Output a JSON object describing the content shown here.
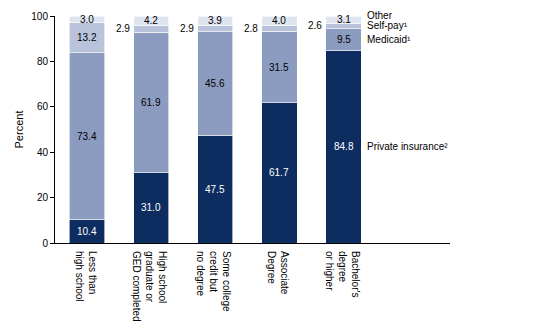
{
  "chart_data": {
    "type": "bar",
    "stacked": true,
    "data_labels": true,
    "grid": false,
    "y_label": "Percent",
    "categories": [
      "Less than\nhigh school",
      "High school\ngraduate or\nGED completed",
      "Some college\ncredit but\nno degree",
      "Associate\nDegree",
      "Bachelor's\ndegree\nor higher"
    ],
    "ylim": [
      0,
      100
    ],
    "yticks": [
      0,
      20,
      40,
      60,
      80,
      100
    ],
    "series": [
      {
        "name": "Private insurance²",
        "color": "#0d2d61",
        "values": [
          10.4,
          31.0,
          47.5,
          61.7,
          84.8
        ],
        "value_labels": [
          "10.4",
          "31.0",
          "47.5",
          "61.7",
          "84.8"
        ]
      },
      {
        "name": "Medicaid¹",
        "color": "#8c9cc0",
        "values": [
          73.4,
          61.9,
          45.6,
          31.5,
          9.5
        ],
        "value_labels": [
          "73.4",
          "61.9",
          "45.6",
          "31.5",
          "9.5"
        ]
      },
      {
        "name": "Self-pay¹",
        "color": "#b9c4dc",
        "values": [
          13.2,
          2.9,
          2.9,
          2.8,
          2.6
        ],
        "value_labels": [
          "13.2",
          "2.9",
          "2.9",
          "2.8",
          "2.6"
        ]
      },
      {
        "name": "Other",
        "color": "#dfe5f0",
        "values": [
          3.0,
          4.2,
          3.9,
          4.0,
          3.1
        ],
        "value_labels": [
          "3.0",
          "4.2",
          "3.9",
          "4.0",
          "3.1"
        ]
      }
    ]
  }
}
